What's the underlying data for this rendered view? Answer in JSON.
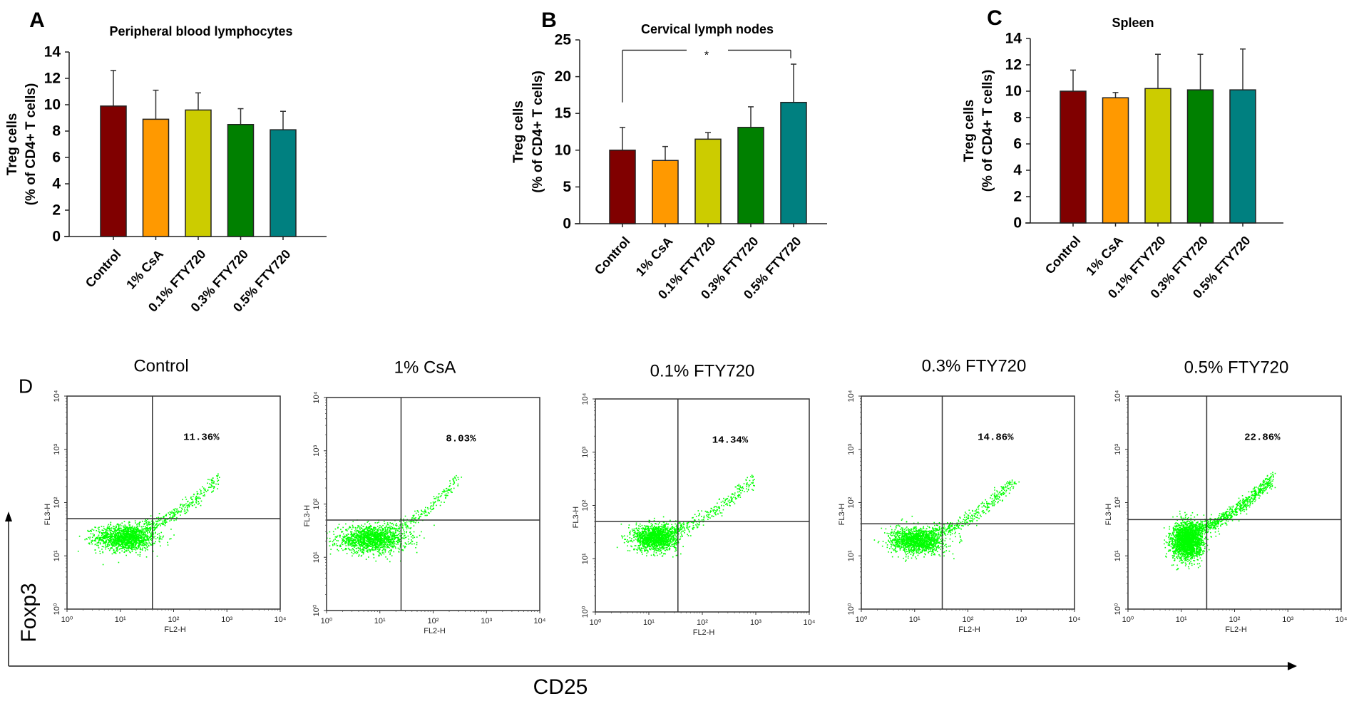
{
  "chart_data": [
    {
      "panel_label": "A",
      "type": "bar",
      "title": "Peripheral blood lymphocytes",
      "ylabel_line1": "Treg  cells",
      "ylabel_line2": "(% of CD4+ T cells)",
      "xlabel": "",
      "ylim": [
        0,
        14
      ],
      "yticks": [
        0,
        2,
        4,
        6,
        8,
        10,
        12,
        14
      ],
      "categories": [
        "Control",
        "1% CsA",
        "0.1% FTY720",
        "0.3% FTY720",
        "0.5% FTY720"
      ],
      "values": [
        9.9,
        8.9,
        9.6,
        8.5,
        8.1
      ],
      "errors_upper": [
        12.6,
        11.1,
        10.9,
        9.7,
        9.5
      ],
      "colors": [
        "#800000",
        "#ff9900",
        "#cccc00",
        "#008000",
        "#008080"
      ],
      "annotations": []
    },
    {
      "panel_label": "B",
      "type": "bar",
      "title": "Cervical lymph nodes",
      "ylabel_line1": "Treg  cells",
      "ylabel_line2": "(% of CD4+ T cells)",
      "xlabel": "",
      "ylim": [
        0,
        25
      ],
      "yticks": [
        0,
        5,
        10,
        15,
        20,
        25
      ],
      "categories": [
        "Control",
        "1% CsA",
        "0.1% FTY720",
        "0.3% FTY720",
        "0.5% FTY720"
      ],
      "values": [
        10.0,
        8.6,
        11.5,
        13.1,
        16.5
      ],
      "errors_upper": [
        13.1,
        10.5,
        12.4,
        15.9,
        21.7
      ],
      "colors": [
        "#800000",
        "#ff9900",
        "#cccc00",
        "#008000",
        "#008080"
      ],
      "annotations": [
        {
          "type": "significance-bracket",
          "from": "Control",
          "to": "0.5% FTY720",
          "text": "*",
          "level": 23.6,
          "left_end": 16.5,
          "right_end": 22.5
        }
      ]
    },
    {
      "panel_label": "C",
      "type": "bar",
      "title": "Spleen",
      "ylabel_line1": "Treg  cells",
      "ylabel_line2": "(% of CD4+ T cells)",
      "xlabel": "",
      "ylim": [
        0,
        14
      ],
      "yticks": [
        0,
        2,
        4,
        6,
        8,
        10,
        12,
        14
      ],
      "categories": [
        "Control",
        "1% CsA",
        "0.1% FTY720",
        "0.3% FTY720",
        "0.5% FTY720"
      ],
      "values": [
        10.0,
        9.5,
        10.2,
        10.1,
        10.1
      ],
      "errors_upper": [
        11.6,
        9.9,
        12.8,
        12.8,
        13.2
      ],
      "colors": [
        "#800000",
        "#ff9900",
        "#cccc00",
        "#008000",
        "#008080"
      ],
      "annotations": []
    },
    {
      "panel_label": "D",
      "type": "scatter",
      "title": "",
      "xlabel": "CD25",
      "ylabel": "Foxp3",
      "plots": [
        {
          "title": "Control",
          "quadrant_ur_percent": "11.36%",
          "gate_x": 40,
          "gate_y": 50,
          "spread": 1.0
        },
        {
          "title": "1% CsA",
          "quadrant_ur_percent": "8.03%",
          "gate_x": 25,
          "gate_y": 50,
          "spread": 1.0
        },
        {
          "title": "0.1% FTY720",
          "quadrant_ur_percent": "14.34%",
          "gate_x": 35,
          "gate_y": 50,
          "spread": 1.0
        },
        {
          "title": "0.3% FTY720",
          "quadrant_ur_percent": "14.86%",
          "gate_x": 33,
          "gate_y": 40,
          "spread": 1.0
        },
        {
          "title": "0.5% FTY720",
          "quadrant_ur_percent": "22.86%",
          "gate_x": 30,
          "gate_y": 48,
          "spread": 1.0
        }
      ],
      "axis_x_name": "FL2-H",
      "axis_y_name": "FL3-H",
      "log_ticks": [
        "10⁰",
        "10¹",
        "10²",
        "10³",
        "10⁴"
      ],
      "xlim": [
        1,
        10000
      ],
      "ylim": [
        1,
        10000
      ],
      "dot_color": "#00ff00"
    }
  ]
}
